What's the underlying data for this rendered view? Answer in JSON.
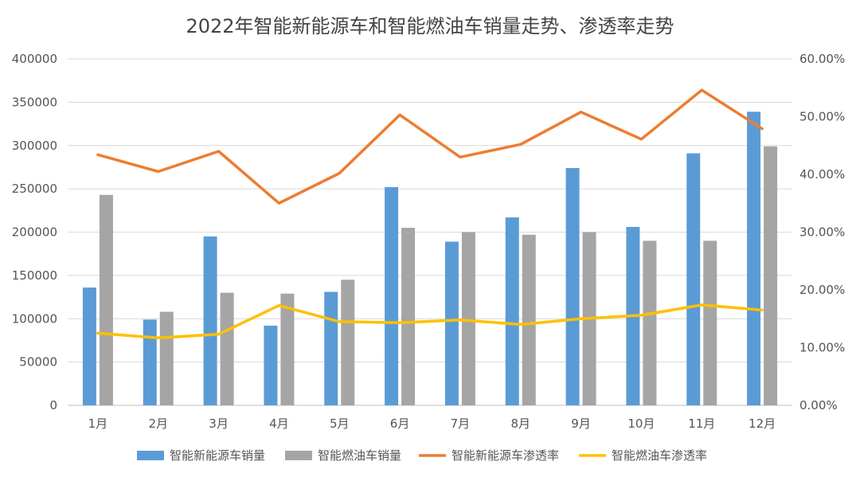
{
  "chart_data": {
    "type": "bar",
    "title": "2022年智能新能源车和智能燃油车销量走势、渗透率走势",
    "categories": [
      "1月",
      "2月",
      "3月",
      "4月",
      "5月",
      "6月",
      "7月",
      "8月",
      "9月",
      "10月",
      "11月",
      "12月"
    ],
    "series": [
      {
        "name": "智能新能源车销量",
        "kind": "bar",
        "axis": "left",
        "color": "#5b9bd5",
        "values": [
          136000,
          99000,
          195000,
          92000,
          131000,
          252000,
          189000,
          217000,
          274000,
          206000,
          291000,
          339000
        ]
      },
      {
        "name": "智能燃油车销量",
        "kind": "bar",
        "axis": "left",
        "color": "#a5a5a5",
        "values": [
          243000,
          108000,
          130000,
          129000,
          145000,
          205000,
          200000,
          197000,
          200000,
          190000,
          190000,
          299000
        ]
      },
      {
        "name": "智能新能源车渗透率",
        "kind": "line",
        "axis": "right",
        "color": "#ed7d31",
        "values": [
          0.434,
          0.405,
          0.44,
          0.35,
          0.402,
          0.503,
          0.43,
          0.452,
          0.508,
          0.461,
          0.546,
          0.479
        ]
      },
      {
        "name": "智能燃油车渗透率",
        "kind": "line",
        "axis": "right",
        "color": "#ffc000",
        "values": [
          0.125,
          0.117,
          0.123,
          0.173,
          0.145,
          0.143,
          0.148,
          0.14,
          0.15,
          0.156,
          0.174,
          0.165
        ]
      }
    ],
    "y_left": {
      "min": 0,
      "max": 400000,
      "ticks": [
        "0",
        "50000",
        "100000",
        "150000",
        "200000",
        "250000",
        "300000",
        "350000",
        "400000"
      ]
    },
    "y_right": {
      "min": 0,
      "max": 0.6,
      "ticks": [
        "0.00%",
        "10.00%",
        "20.00%",
        "30.00%",
        "40.00%",
        "50.00%",
        "60.00%"
      ]
    },
    "grid": true,
    "legend_position": "bottom"
  }
}
